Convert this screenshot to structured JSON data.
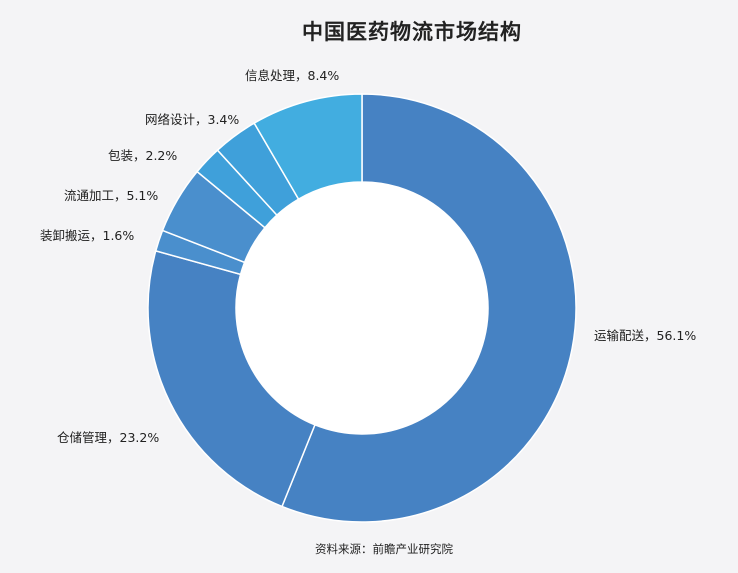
{
  "chart_data": {
    "type": "pie",
    "title": "中国医药物流市场结构",
    "source": "资料来源：前瞻产业研究院",
    "slices": [
      {
        "label": "运输配送",
        "value": 56.1,
        "display": "运输配送，56.1%",
        "color": "#4682c3"
      },
      {
        "label": "仓储管理",
        "value": 23.2,
        "display": "仓储管理，23.2%",
        "color": "#4682c3"
      },
      {
        "label": "装卸搬运",
        "value": 1.6,
        "display": "装卸搬运，1.6%",
        "color": "#4a8fcd"
      },
      {
        "label": "流通加工",
        "value": 5.1,
        "display": "流通加工，5.1%",
        "color": "#4a8fcd"
      },
      {
        "label": "包装",
        "value": 2.2,
        "display": "包装，2.2%",
        "color": "#3fa0da"
      },
      {
        "label": "网络设计",
        "value": 3.4,
        "display": "网络设计，3.4%",
        "color": "#3fa0da"
      },
      {
        "label": "信息处理",
        "value": 8.4,
        "display": "信息处理，8.4%",
        "color": "#42ade0"
      }
    ]
  }
}
